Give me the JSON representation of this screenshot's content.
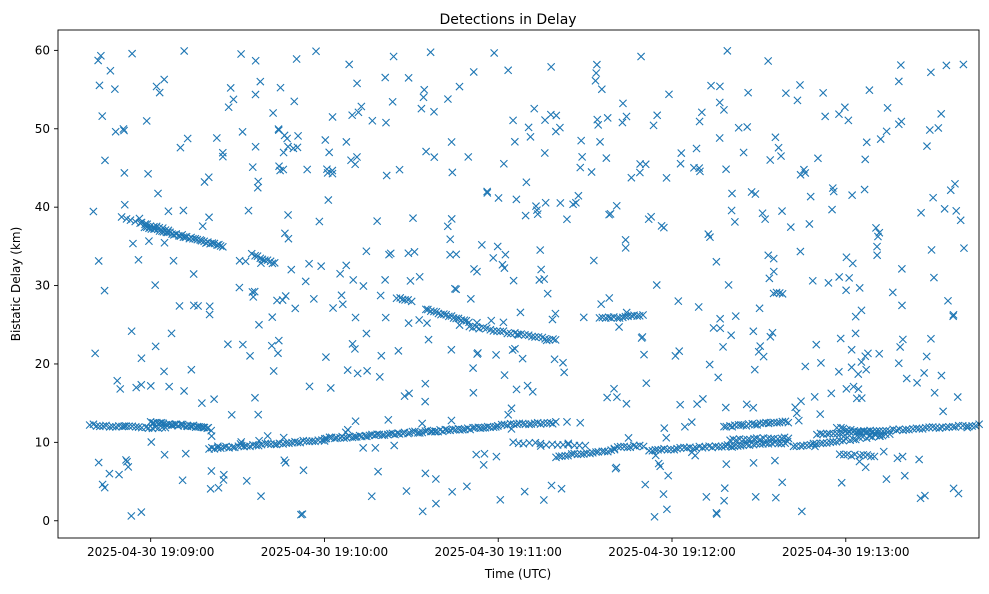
{
  "chart_data": {
    "type": "scatter",
    "title": "Detections in Delay",
    "xlabel": "Time (UTC)",
    "ylabel": "Bistatic Delay (km)",
    "x_tick_labels": [
      "2025-04-30 19:09:00",
      "2025-04-30 19:10:00",
      "2025-04-30 19:11:00",
      "2025-04-30 19:12:00",
      "2025-04-30 19:13:00"
    ],
    "x_ticks_seconds_after_19_00": [
      540,
      600,
      660,
      720,
      780
    ],
    "xlim_seconds_after_19_00": [
      508,
      826
    ],
    "y_ticks": [
      0,
      10,
      20,
      30,
      40,
      50,
      60
    ],
    "ylim": [
      -2.2,
      62.6
    ],
    "marker": "x",
    "color": "#1f77b4",
    "grid": false,
    "legend": "none",
    "tracks": [
      {
        "x": [
          519,
          545
        ],
        "y": [
          12.2,
          11.8
        ],
        "n": 24
      },
      {
        "x": [
          540,
          560
        ],
        "y": [
          12.5,
          11.9
        ],
        "n": 32
      },
      {
        "x": [
          560,
          600
        ],
        "y": [
          9.2,
          10.3
        ],
        "n": 40
      },
      {
        "x": [
          600,
          660
        ],
        "y": [
          10.5,
          12.0
        ],
        "n": 70
      },
      {
        "x": [
          660,
          680
        ],
        "y": [
          12.2,
          12.5
        ],
        "n": 20
      },
      {
        "x": [
          665,
          690
        ],
        "y": [
          10.0,
          9.5
        ],
        "n": 14
      },
      {
        "x": [
          680,
          700
        ],
        "y": [
          8.2,
          9.0
        ],
        "n": 20
      },
      {
        "x": [
          700,
          710
        ],
        "y": [
          9.3,
          9.6
        ],
        "n": 10
      },
      {
        "x": [
          712,
          760
        ],
        "y": [
          9.0,
          10.0
        ],
        "n": 45
      },
      {
        "x": [
          738,
          760
        ],
        "y": [
          12.0,
          12.6
        ],
        "n": 24
      },
      {
        "x": [
          740,
          760
        ],
        "y": [
          10.3,
          10.6
        ],
        "n": 18
      },
      {
        "x": [
          762,
          795
        ],
        "y": [
          9.5,
          11.0
        ],
        "n": 30
      },
      {
        "x": [
          770,
          826
        ],
        "y": [
          11.0,
          12.2
        ],
        "n": 50
      },
      {
        "x": [
          777,
          790
        ],
        "y": [
          11.8,
          11.2
        ],
        "n": 12
      },
      {
        "x": [
          778,
          790
        ],
        "y": [
          8.5,
          8.2
        ],
        "n": 10
      },
      {
        "x": [
          538,
          565
        ],
        "y": [
          37.5,
          35.0
        ],
        "n": 38
      },
      {
        "x": [
          537,
          546
        ],
        "y": [
          38.0,
          37.0
        ],
        "n": 10
      },
      {
        "x": [
          575,
          583
        ],
        "y": [
          34.0,
          32.8
        ],
        "n": 10
      },
      {
        "x": [
          635,
          650
        ],
        "y": [
          27.0,
          25.3
        ],
        "n": 18
      },
      {
        "x": [
          650,
          680
        ],
        "y": [
          24.8,
          23.0
        ],
        "n": 26
      },
      {
        "x": [
          625,
          630
        ],
        "y": [
          28.4,
          28.0
        ],
        "n": 6
      },
      {
        "x": [
          695,
          710
        ],
        "y": [
          25.8,
          26.2
        ],
        "n": 16
      },
      {
        "x": [
          755,
          758
        ],
        "y": [
          29.0,
          29.0
        ],
        "n": 4
      },
      {
        "x": [
          530,
          538
        ],
        "y": [
          38.8,
          37.8
        ],
        "n": 6
      }
    ],
    "scattered_points": [
      {
        "count": 620,
        "x_range": [
          519,
          822
        ],
        "y_range": [
          0.5,
          60
        ],
        "distribution": "uniform clutter"
      }
    ]
  }
}
